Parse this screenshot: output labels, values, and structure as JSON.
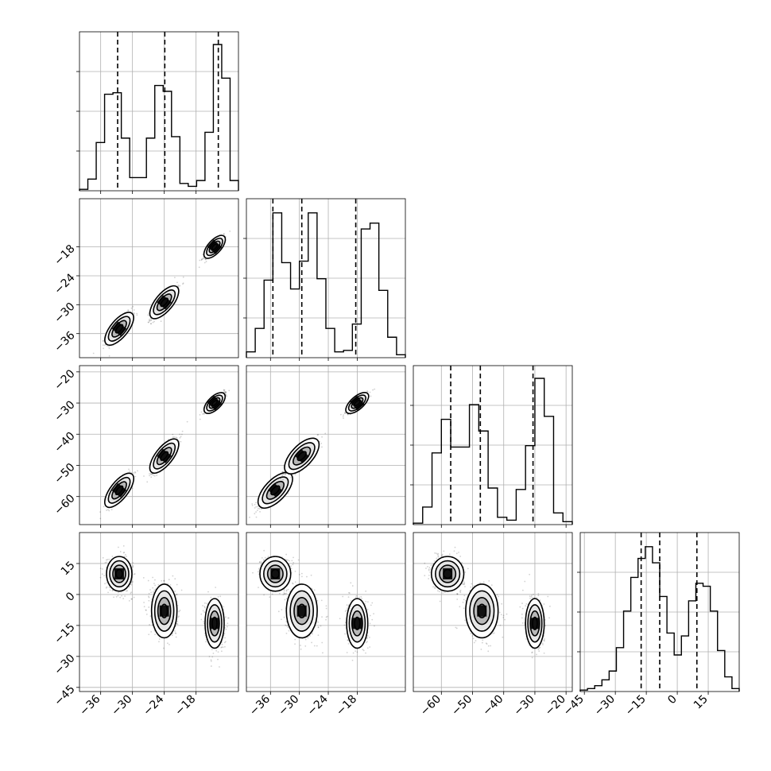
{
  "chart_data": {
    "type": "corner",
    "n_params": 4,
    "parameters": [
      {
        "range": [
          -40,
          -10
        ],
        "ticks": [
          -36,
          -30,
          -24,
          -18
        ],
        "tick_labels": [
          "−36",
          "−30",
          "−24",
          "−18"
        ],
        "histogram": [
          0.01,
          0.08,
          0.33,
          0.66,
          0.67,
          0.36,
          0.09,
          0.09,
          0.36,
          0.72,
          0.68,
          0.37,
          0.05,
          0.03,
          0.07,
          0.4,
          1.0,
          0.77,
          0.07
        ],
        "quantiles": [
          -32.8,
          -23.9,
          -13.8
        ]
      },
      {
        "range": [
          -41,
          -8
        ],
        "ticks": [
          -36,
          -30,
          -24,
          -18
        ],
        "tick_labels": [
          "−36",
          "−30",
          "−24",
          "−18"
        ],
        "histogram": [
          0.04,
          0.2,
          0.53,
          0.99,
          0.65,
          0.47,
          0.66,
          0.99,
          0.54,
          0.2,
          0.04,
          0.05,
          0.23,
          0.88,
          0.92,
          0.46,
          0.14,
          0.02
        ],
        "quantiles": [
          -35.5,
          -29.5,
          -18.3
        ]
      },
      {
        "range": [
          -69,
          -18
        ],
        "ticks": [
          -60,
          -50,
          -40,
          -30,
          -20
        ],
        "tick_labels": [
          "−60",
          "−50",
          "−40",
          "−30",
          "−20"
        ],
        "histogram": [
          0.01,
          0.12,
          0.49,
          0.72,
          0.53,
          0.53,
          0.82,
          0.64,
          0.25,
          0.05,
          0.03,
          0.24,
          0.54,
          1.0,
          0.74,
          0.08,
          0.02
        ],
        "quantiles": [
          -57.0,
          -47.5,
          -30.6
        ]
      },
      {
        "range": [
          -47,
          30
        ],
        "ticks": [
          -45,
          -30,
          -15,
          0,
          15
        ],
        "tick_labels": [
          "−45",
          "−30",
          "−15",
          "0",
          "15"
        ],
        "histogram": [
          0.01,
          0.02,
          0.04,
          0.08,
          0.14,
          0.3,
          0.55,
          0.78,
          0.91,
          0.99,
          0.88,
          0.65,
          0.4,
          0.25,
          0.38,
          0.62,
          0.74,
          0.72,
          0.55,
          0.28,
          0.1,
          0.02
        ],
        "quantiles": [
          -17.5,
          -8.5,
          9.5
        ]
      }
    ],
    "clusters": [
      {
        "center": [
          -32.5,
          -35.0,
          -58.0,
          10.0
        ],
        "spread": [
          1.2,
          1.6,
          2.6,
          4.2
        ],
        "weight": 0.32
      },
      {
        "center": [
          -24.0,
          -29.5,
          -47.0,
          -8.0
        ],
        "spread": [
          1.2,
          1.6,
          2.6,
          6.5
        ],
        "weight": 0.36
      },
      {
        "center": [
          -14.5,
          -18.0,
          -30.0,
          -14.0
        ],
        "spread": [
          0.9,
          1.1,
          1.5,
          6.0
        ],
        "weight": 0.32
      }
    ],
    "correlations": [
      [
        1,
        0.9
      ],
      [
        0,
        0.9
      ],
      [
        0,
        0.9
      ],
      [
        0,
        0.6
      ]
    ],
    "contour_levels_sigma": [
      0.5,
      1.0,
      1.5,
      2.0
    ],
    "grid": true,
    "quantile_style": "dashed",
    "colors": {
      "ink": "#000000",
      "grid": "#b0b0b0",
      "background": "#ffffff"
    }
  }
}
